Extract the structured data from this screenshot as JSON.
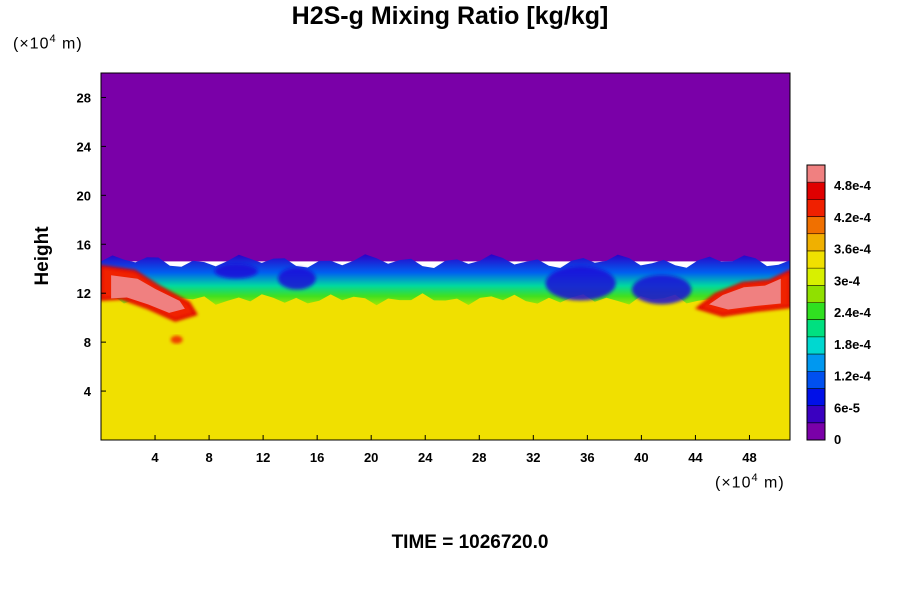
{
  "chart_data": {
    "type": "heatmap",
    "title": "H2S-g Mixing Ratio [kg/kg]",
    "ylabel": "Height",
    "x_unit": {
      "prefix": "(×10",
      "exp": "4",
      "suffix": " m)"
    },
    "y_unit": {
      "prefix": "(×10",
      "exp": "4",
      "suffix": " m)"
    },
    "xlim": [
      0,
      51
    ],
    "ylim": [
      0,
      30
    ],
    "x_ticks": [
      4,
      8,
      12,
      16,
      20,
      24,
      28,
      32,
      36,
      40,
      44,
      48
    ],
    "y_ticks": [
      4,
      8,
      12,
      16,
      20,
      24,
      28
    ],
    "colorbar": {
      "range": [
        0,
        0.00052
      ],
      "ticks": [
        {
          "value": 0,
          "label": "0"
        },
        {
          "value": 6e-05,
          "label": "6e-5"
        },
        {
          "value": 0.00012,
          "label": "1.2e-4"
        },
        {
          "value": 0.00018,
          "label": "1.8e-4"
        },
        {
          "value": 0.00024,
          "label": "2.4e-4"
        },
        {
          "value": 0.0003,
          "label": "3e-4"
        },
        {
          "value": 0.00036,
          "label": "3.6e-4"
        },
        {
          "value": 0.00042,
          "label": "4.2e-4"
        },
        {
          "value": 0.00048,
          "label": "4.8e-4"
        }
      ],
      "colors": [
        "#7a00a8",
        "#3a00c0",
        "#0010e8",
        "#0050f0",
        "#0098f0",
        "#00d8d0",
        "#00e080",
        "#30e020",
        "#90e000",
        "#d8f000",
        "#f0e000",
        "#f0b000",
        "#f07000",
        "#f02000",
        "#e00000",
        "#f08080"
      ]
    },
    "regions": [
      {
        "name": "upper layer",
        "x": [
          0,
          51
        ],
        "y": [
          14.6,
          30
        ],
        "value": 0
      },
      {
        "name": "lower layer",
        "x": [
          0,
          51
        ],
        "y": [
          0,
          11.5
        ],
        "value": 0.00034
      },
      {
        "name": "left plume",
        "x": [
          0,
          7
        ],
        "y": [
          10,
          14.2
        ],
        "value": 0.00052
      },
      {
        "name": "right plume",
        "x": [
          44,
          51
        ],
        "y": [
          10.2,
          13.8
        ],
        "value": 0.00052
      }
    ]
  },
  "time_label": "TIME = 1026720.0"
}
